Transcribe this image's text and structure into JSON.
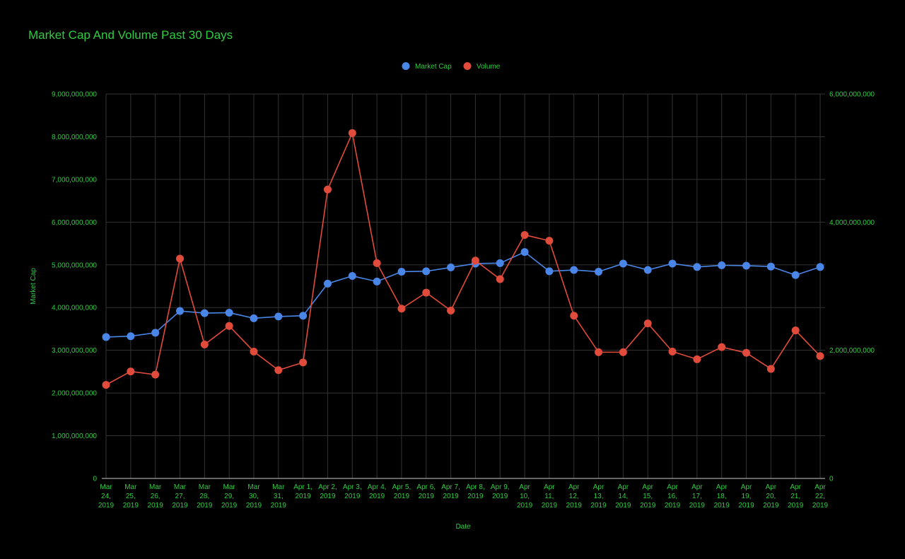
{
  "chart_data": {
    "type": "line",
    "title": "Market Cap And Volume Past 30 Days",
    "xlabel": "Date",
    "ylabel": "Market Cap",
    "ylabel_right": "",
    "ylim": [
      0,
      9000000000
    ],
    "ylim_right": [
      0,
      6000000000
    ],
    "yticks": [
      "0",
      "1,000,000,000",
      "2,000,000,000",
      "3,000,000,000",
      "4,000,000,000",
      "5,000,000,000",
      "6,000,000,000",
      "7,000,000,000",
      "8,000,000,000",
      "9,000,000,000"
    ],
    "yticks_right": [
      "0",
      "2,000,000,000",
      "4,000,000,000",
      "6,000,000,000"
    ],
    "grid": true,
    "legend_position": "top",
    "categories": [
      [
        "Mar",
        "24,",
        "2019"
      ],
      [
        "Mar",
        "25,",
        "2019"
      ],
      [
        "Mar",
        "26,",
        "2019"
      ],
      [
        "Mar",
        "27,",
        "2019"
      ],
      [
        "Mar",
        "28,",
        "2019"
      ],
      [
        "Mar",
        "29,",
        "2019"
      ],
      [
        "Mar",
        "30,",
        "2019"
      ],
      [
        "Mar",
        "31,",
        "2019"
      ],
      [
        "Apr 1,",
        "2019"
      ],
      [
        "Apr 2,",
        "2019"
      ],
      [
        "Apr 3,",
        "2019"
      ],
      [
        "Apr 4,",
        "2019"
      ],
      [
        "Apr 5,",
        "2019"
      ],
      [
        "Apr 6,",
        "2019"
      ],
      [
        "Apr 7,",
        "2019"
      ],
      [
        "Apr 8,",
        "2019"
      ],
      [
        "Apr 9,",
        "2019"
      ],
      [
        "Apr",
        "10,",
        "2019"
      ],
      [
        "Apr",
        "11,",
        "2019"
      ],
      [
        "Apr",
        "12,",
        "2019"
      ],
      [
        "Apr",
        "13,",
        "2019"
      ],
      [
        "Apr",
        "14,",
        "2019"
      ],
      [
        "Apr",
        "15,",
        "2019"
      ],
      [
        "Apr",
        "16,",
        "2019"
      ],
      [
        "Apr",
        "17,",
        "2019"
      ],
      [
        "Apr",
        "18,",
        "2019"
      ],
      [
        "Apr",
        "19,",
        "2019"
      ],
      [
        "Apr",
        "20,",
        "2019"
      ],
      [
        "Apr",
        "21,",
        "2019"
      ],
      [
        "Apr",
        "22,",
        "2019"
      ]
    ],
    "series": [
      {
        "name": "Market Cap",
        "axis": "left",
        "color": "#4a86e8",
        "values": [
          3310000000,
          3330000000,
          3410000000,
          3920000000,
          3870000000,
          3880000000,
          3750000000,
          3790000000,
          3810000000,
          4560000000,
          4740000000,
          4610000000,
          4840000000,
          4850000000,
          4940000000,
          5030000000,
          5040000000,
          5300000000,
          4850000000,
          4880000000,
          4840000000,
          5030000000,
          4880000000,
          5030000000,
          4950000000,
          4990000000,
          4980000000,
          4960000000,
          4760000000,
          4950000000
        ]
      },
      {
        "name": "Volume",
        "axis": "right",
        "color": "#e04b3c",
        "values": [
          1460000000,
          1670000000,
          1620000000,
          3430000000,
          2090000000,
          2380000000,
          1980000000,
          1690000000,
          1810000000,
          4510000000,
          5390000000,
          3360000000,
          2650000000,
          2900000000,
          2620000000,
          3400000000,
          3110000000,
          3800000000,
          3710000000,
          2540000000,
          1970000000,
          1970000000,
          2420000000,
          1980000000,
          1860000000,
          2050000000,
          1960000000,
          1710000000,
          2310000000,
          1910000000
        ]
      }
    ]
  }
}
